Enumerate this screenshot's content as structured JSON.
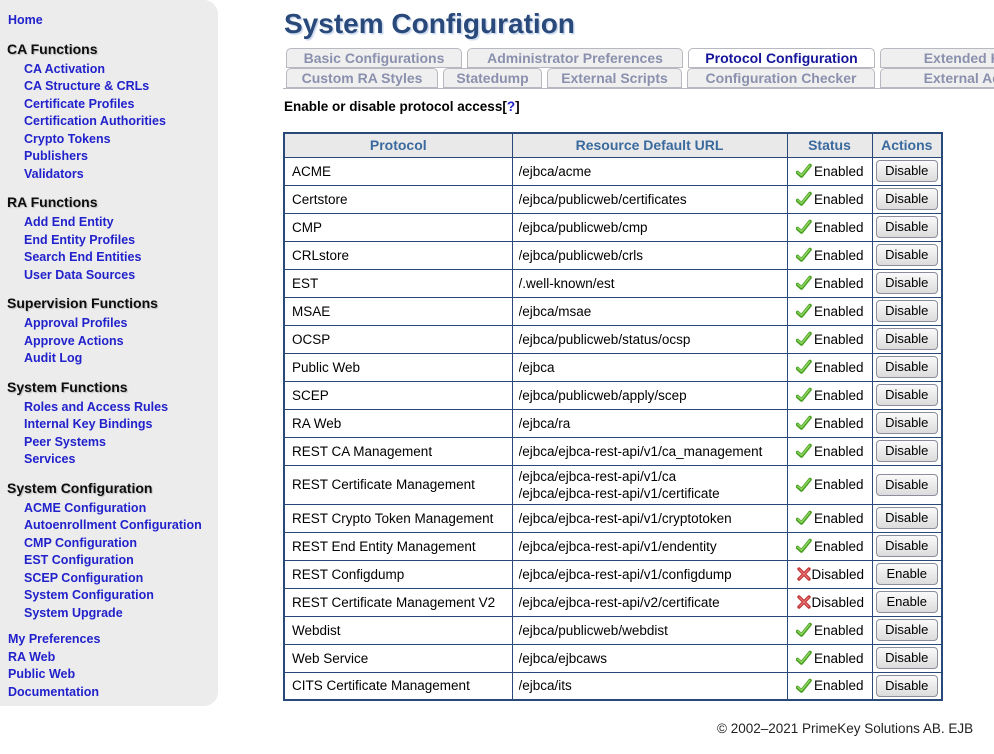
{
  "app": {
    "title": "System Configuration",
    "footer_text": "© 2002–2021 PrimeKey Solutions AB. EJB"
  },
  "colors": {
    "link_blue": "#2222cc",
    "title_blue": "#29497B",
    "table_border": "#29497B",
    "table_header_text": "#3a6a9e",
    "active_tab_text": "#15159b",
    "inactive_tab_text": "#8a90ad",
    "enabled_green": "#499e23",
    "enabled_green_light": "#8ed75f",
    "disabled_red": "#c03a3a",
    "disabled_red_light": "#ee7777"
  },
  "sidebar": {
    "home_label": "Home",
    "sections": [
      {
        "title": "CA Functions",
        "items": [
          "CA Activation",
          "CA Structure & CRLs",
          "Certificate Profiles",
          "Certification Authorities",
          "Crypto Tokens",
          "Publishers",
          "Validators"
        ]
      },
      {
        "title": "RA Functions",
        "items": [
          "Add End Entity",
          "End Entity Profiles",
          "Search End Entities",
          "User Data Sources"
        ]
      },
      {
        "title": "Supervision Functions",
        "items": [
          "Approval Profiles",
          "Approve Actions",
          "Audit Log"
        ]
      },
      {
        "title": "System Functions",
        "items": [
          "Roles and Access Rules",
          "Internal Key Bindings",
          "Peer Systems",
          "Services"
        ]
      },
      {
        "title": "System Configuration",
        "items": [
          "ACME Configuration",
          "Autoenrollment Configuration",
          "CMP Configuration",
          "EST Configuration",
          "SCEP Configuration",
          "System Configuration",
          "System Upgrade"
        ]
      }
    ],
    "bottom_links": [
      "My Preferences",
      "RA Web",
      "Public Web",
      "Documentation"
    ]
  },
  "tabs": {
    "rows": [
      [
        {
          "label": "Basic Configurations",
          "active": false
        },
        {
          "label": "Administrator Preferences",
          "active": false
        },
        {
          "label": "Protocol Configuration",
          "active": true
        },
        {
          "label": "Extended Key",
          "active": false
        }
      ],
      [
        {
          "label": "Custom RA Styles",
          "active": false
        },
        {
          "label": "Statedump",
          "active": false
        },
        {
          "label": "External Scripts",
          "active": false
        },
        {
          "label": "Configuration Checker",
          "active": false
        },
        {
          "label": "External Acco",
          "active": false
        }
      ]
    ]
  },
  "content": {
    "heading": "Enable or disable protocol access",
    "help_open": "[",
    "help_symbol": "?",
    "help_close": "]",
    "table": {
      "headers": [
        "Protocol",
        "Resource Default URL",
        "Status",
        "Actions"
      ],
      "rows": [
        {
          "protocol": "ACME",
          "urls": [
            "/ejbca/acme"
          ],
          "status": "Enabled",
          "action": "Disable",
          "enabled": true
        },
        {
          "protocol": "Certstore",
          "urls": [
            "/ejbca/publicweb/certificates"
          ],
          "status": "Enabled",
          "action": "Disable",
          "enabled": true
        },
        {
          "protocol": "CMP",
          "urls": [
            "/ejbca/publicweb/cmp"
          ],
          "status": "Enabled",
          "action": "Disable",
          "enabled": true
        },
        {
          "protocol": "CRLstore",
          "urls": [
            "/ejbca/publicweb/crls"
          ],
          "status": "Enabled",
          "action": "Disable",
          "enabled": true
        },
        {
          "protocol": "EST",
          "urls": [
            "/.well-known/est"
          ],
          "status": "Enabled",
          "action": "Disable",
          "enabled": true
        },
        {
          "protocol": "MSAE",
          "urls": [
            "/ejbca/msae"
          ],
          "status": "Enabled",
          "action": "Disable",
          "enabled": true
        },
        {
          "protocol": "OCSP",
          "urls": [
            "/ejbca/publicweb/status/ocsp"
          ],
          "status": "Enabled",
          "action": "Disable",
          "enabled": true
        },
        {
          "protocol": "Public Web",
          "urls": [
            "/ejbca"
          ],
          "status": "Enabled",
          "action": "Disable",
          "enabled": true
        },
        {
          "protocol": "SCEP",
          "urls": [
            "/ejbca/publicweb/apply/scep"
          ],
          "status": "Enabled",
          "action": "Disable",
          "enabled": true
        },
        {
          "protocol": "RA Web",
          "urls": [
            "/ejbca/ra"
          ],
          "status": "Enabled",
          "action": "Disable",
          "enabled": true
        },
        {
          "protocol": "REST CA Management",
          "urls": [
            "/ejbca/ejbca-rest-api/v1/ca_management"
          ],
          "status": "Enabled",
          "action": "Disable",
          "enabled": true
        },
        {
          "protocol": "REST Certificate Management",
          "urls": [
            "/ejbca/ejbca-rest-api/v1/ca",
            "/ejbca/ejbca-rest-api/v1/certificate"
          ],
          "status": "Enabled",
          "action": "Disable",
          "enabled": true
        },
        {
          "protocol": "REST Crypto Token Management",
          "urls": [
            "/ejbca/ejbca-rest-api/v1/cryptotoken"
          ],
          "status": "Enabled",
          "action": "Disable",
          "enabled": true
        },
        {
          "protocol": "REST End Entity Management",
          "urls": [
            "/ejbca/ejbca-rest-api/v1/endentity"
          ],
          "status": "Enabled",
          "action": "Disable",
          "enabled": true
        },
        {
          "protocol": "REST Configdump",
          "urls": [
            "/ejbca/ejbca-rest-api/v1/configdump"
          ],
          "status": "Disabled",
          "action": "Enable",
          "enabled": false
        },
        {
          "protocol": "REST Certificate Management V2",
          "urls": [
            "/ejbca/ejbca-rest-api/v2/certificate"
          ],
          "status": "Disabled",
          "action": "Enable",
          "enabled": false
        },
        {
          "protocol": "Webdist",
          "urls": [
            "/ejbca/publicweb/webdist"
          ],
          "status": "Enabled",
          "action": "Disable",
          "enabled": true
        },
        {
          "protocol": "Web Service",
          "urls": [
            "/ejbca/ejbcaws"
          ],
          "status": "Enabled",
          "action": "Disable",
          "enabled": true
        },
        {
          "protocol": "CITS Certificate Management",
          "urls": [
            "/ejbca/its"
          ],
          "status": "Enabled",
          "action": "Disable",
          "enabled": true
        }
      ]
    }
  }
}
